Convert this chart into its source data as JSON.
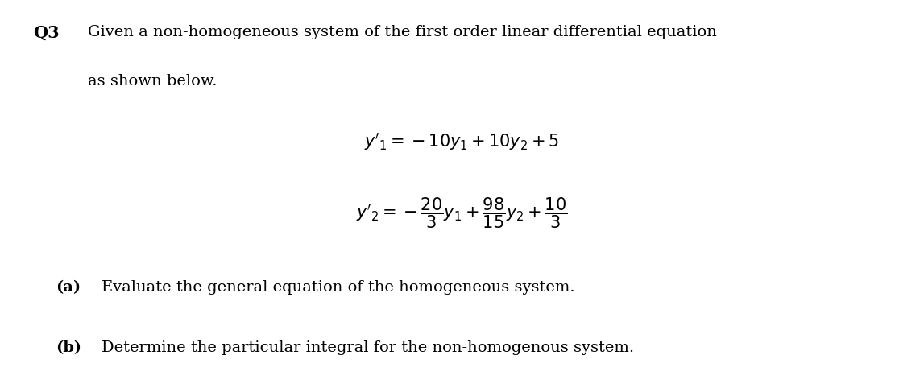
{
  "background_color": "#ffffff",
  "q_label": "Q3",
  "intro_line1": "Given a non-homogeneous system of the first order linear differential equation",
  "intro_line2": "as shown below.",
  "eq1": "$y'_1 = -10y_1 + 10y_2 + 5$",
  "eq2": "$y'_2 = -\\dfrac{20}{3}y_1 + \\dfrac{98}{15}y_2 + \\dfrac{10}{3}$",
  "part_a_label": "(a)",
  "part_a_text": "Evaluate the general equation of the homogeneous system.",
  "part_b_label": "(b)",
  "part_b_text": "Determine the particular integral for the non-homogenous system.",
  "font_size_body": 14,
  "font_size_eq": 15,
  "font_size_q": 15,
  "text_color": "#000000"
}
